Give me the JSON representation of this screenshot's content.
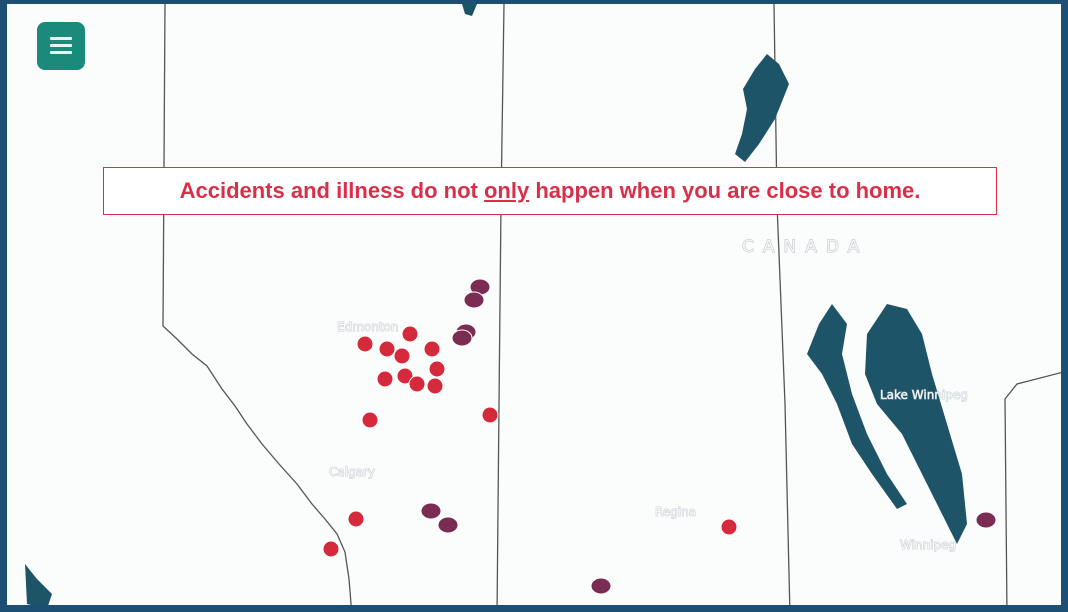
{
  "banner": {
    "before": "Accidents and illness do not ",
    "emphasis": "only",
    "after": " happen when you are close to home."
  },
  "labels": {
    "country": "CANADA",
    "edmonton": "Edmonton",
    "calgary": "Calgary",
    "regina": "Regina",
    "lake": "Lake Winnipeg",
    "winnipeg": "Winnipeg"
  }
}
